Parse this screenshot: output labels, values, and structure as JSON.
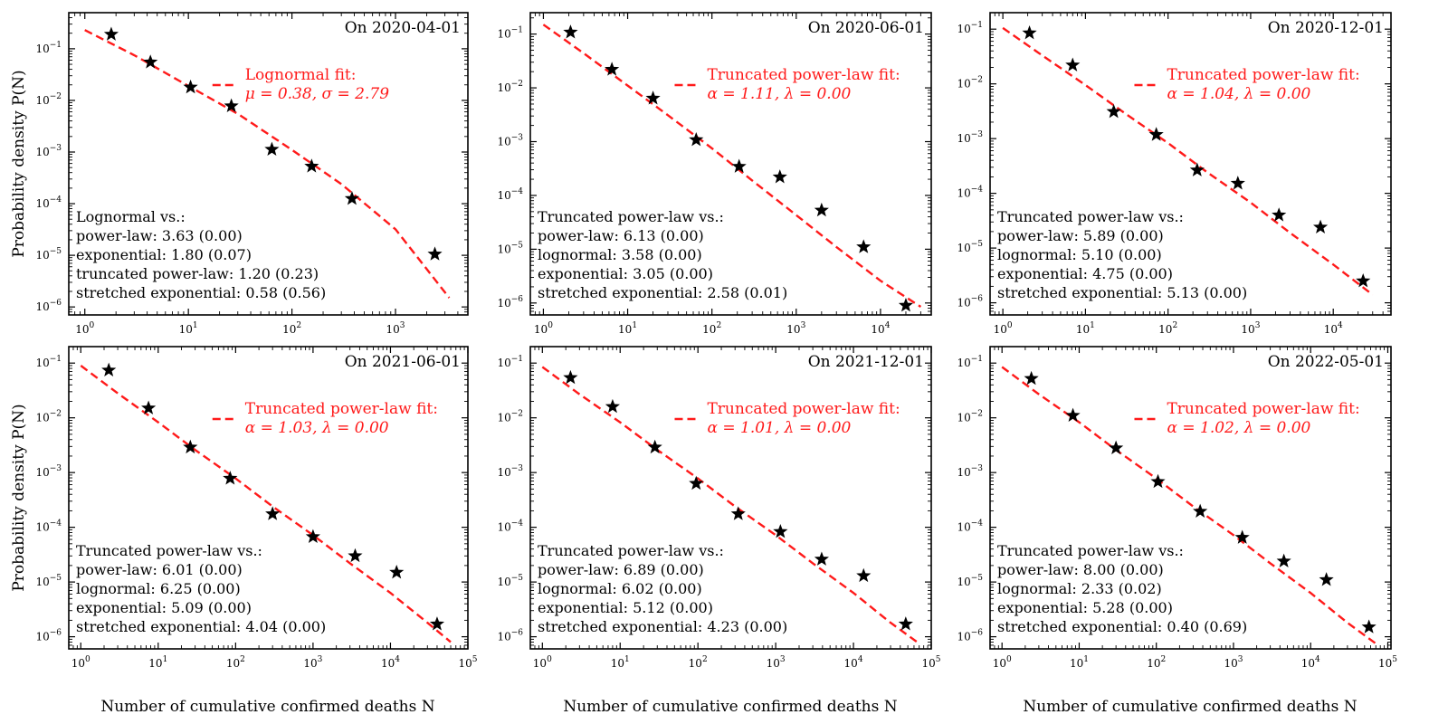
{
  "figure": {
    "ylabel": "Probability density P(N)",
    "xlabel": "Number of cumulative confirmed deaths N",
    "fit_color": "#ff1a1a",
    "marker_color": "#000000"
  },
  "chart_data": [
    {
      "type": "scatter",
      "title": "On 2020-04-01",
      "xlim": [
        0.7,
        5000
      ],
      "ylim": [
        7e-07,
        0.5
      ],
      "xticks": [
        1,
        10,
        100,
        1000
      ],
      "xtick_labels": [
        "10^0",
        "10^1",
        "10^2",
        "10^3"
      ],
      "yticks": [
        1e-06,
        1e-05,
        0.0001,
        0.001,
        0.01,
        0.1
      ],
      "ytick_labels": [
        "10^-6",
        "10^-5",
        "10^-4",
        "10^-3",
        "10^-2",
        "10^-1"
      ],
      "points": {
        "x": [
          1.8,
          4.3,
          10.5,
          26,
          64,
          155,
          380,
          2400
        ],
        "y": [
          0.19,
          0.055,
          0.018,
          0.0078,
          0.00112,
          0.00053,
          0.000125,
          1.05e-05
        ]
      },
      "fit": {
        "x": [
          1,
          3,
          10,
          30,
          100,
          300,
          1000,
          3300
        ],
        "y": [
          0.23,
          0.075,
          0.019,
          0.0055,
          0.0011,
          0.00024,
          3.2e-05,
          1.5e-06
        ]
      },
      "fit_label": [
        "Lognormal fit:",
        "μ = 0.38,  σ = 2.79"
      ],
      "comparison_title": "Lognormal vs.:",
      "comparisons": [
        "power-law: 3.63 (0.00)",
        "exponential: 1.80 (0.07)",
        "truncated power-law: 1.20 (0.23)",
        "stretched exponential: 0.58 (0.56)"
      ]
    },
    {
      "type": "scatter",
      "title": "On 2020-06-01",
      "xlim": [
        0.7,
        40000
      ],
      "ylim": [
        6e-07,
        0.25
      ],
      "xticks": [
        1,
        10,
        100,
        1000,
        10000
      ],
      "xtick_labels": [
        "10^0",
        "10^1",
        "10^2",
        "10^3",
        "10^4"
      ],
      "yticks": [
        1e-06,
        1e-05,
        0.0001,
        0.001,
        0.01,
        0.1
      ],
      "ytick_labels": [
        "10^-6",
        "10^-5",
        "10^-4",
        "10^-3",
        "10^-2",
        "10^-1"
      ],
      "points": {
        "x": [
          2.1,
          6.5,
          20,
          65,
          210,
          640,
          2000,
          6300,
          20000
        ],
        "y": [
          0.108,
          0.022,
          0.0064,
          0.00108,
          0.000345,
          0.00022,
          5.3e-05,
          1.1e-05,
          9e-07
        ]
      },
      "fit": {
        "x": [
          1,
          3,
          10,
          30,
          100,
          300,
          1000,
          3000,
          10000,
          30000
        ],
        "y": [
          0.15,
          0.044,
          0.011,
          0.0031,
          0.00075,
          0.00019,
          4.3e-05,
          1.1e-05,
          2.6e-06,
          8.5e-07
        ]
      },
      "fit_label": [
        "Truncated power-law fit:",
        "α = 1.11,  λ = 0.00"
      ],
      "comparison_title": "Truncated power-law vs.:",
      "comparisons": [
        "power-law: 6.13 (0.00)",
        "lognormal: 3.58 (0.00)",
        "exponential: 3.05 (0.00)",
        "stretched exponential: 2.58 (0.01)"
      ]
    },
    {
      "type": "scatter",
      "title": "On 2020-12-01",
      "xlim": [
        0.7,
        50000
      ],
      "ylim": [
        6e-07,
        0.2
      ],
      "xticks": [
        1,
        10,
        100,
        1000,
        10000
      ],
      "xtick_labels": [
        "10^0",
        "10^1",
        "10^2",
        "10^3",
        "10^4"
      ],
      "yticks": [
        1e-06,
        1e-05,
        0.0001,
        0.001,
        0.01,
        0.1
      ],
      "ytick_labels": [
        "10^-6",
        "10^-5",
        "10^-4",
        "10^-3",
        "10^-2",
        "10^-1"
      ],
      "points": {
        "x": [
          2.1,
          7,
          22,
          72,
          225,
          700,
          2200,
          7000,
          23000
        ],
        "y": [
          0.085,
          0.022,
          0.0031,
          0.00118,
          0.000265,
          0.000152,
          4e-05,
          2.4e-05,
          2.5e-06
        ]
      },
      "fit": {
        "x": [
          1,
          3,
          10,
          30,
          100,
          300,
          1000,
          3000,
          10000,
          30000
        ],
        "y": [
          0.105,
          0.033,
          0.0095,
          0.0029,
          0.00083,
          0.00024,
          6.8e-05,
          1.9e-05,
          5e-06,
          1.4e-06
        ]
      },
      "fit_label": [
        "Truncated power-law fit:",
        "α = 1.04,  λ = 0.00"
      ],
      "comparison_title": "Truncated power-law vs.:",
      "comparisons": [
        "power-law: 5.89 (0.00)",
        "lognormal: 5.10 (0.00)",
        "exponential: 4.75 (0.00)",
        "stretched exponential: 5.13 (0.00)"
      ]
    },
    {
      "type": "scatter",
      "title": "On 2021-06-01",
      "xlim": [
        0.7,
        100000
      ],
      "ylim": [
        6e-07,
        0.2
      ],
      "xticks": [
        1,
        10,
        100,
        1000,
        10000,
        100000
      ],
      "xtick_labels": [
        "10^0",
        "10^1",
        "10^2",
        "10^3",
        "10^4",
        "10^5"
      ],
      "yticks": [
        1e-06,
        1e-05,
        0.0001,
        0.001,
        0.01,
        0.1
      ],
      "ytick_labels": [
        "10^-6",
        "10^-5",
        "10^-4",
        "10^-3",
        "10^-2",
        "10^-1"
      ],
      "points": {
        "x": [
          2.3,
          7.5,
          26,
          85,
          300,
          1000,
          3500,
          12000,
          40000
        ],
        "y": [
          0.074,
          0.015,
          0.0029,
          0.00078,
          0.000175,
          6.7e-05,
          3e-05,
          1.5e-05,
          1.7e-06
        ]
      },
      "fit": {
        "x": [
          1,
          3,
          10,
          30,
          100,
          300,
          1000,
          3000,
          10000,
          30000,
          60000
        ],
        "y": [
          0.09,
          0.028,
          0.0083,
          0.0026,
          0.00078,
          0.00024,
          7.2e-05,
          2.2e-05,
          6.3e-06,
          1.8e-06,
          8e-07
        ]
      },
      "fit_label": [
        "Truncated power-law fit:",
        "α = 1.03,  λ = 0.00"
      ],
      "comparison_title": "Truncated power-law vs.:",
      "comparisons": [
        "power-law: 6.01 (0.00)",
        "lognormal: 6.25 (0.00)",
        "exponential: 5.09 (0.00)",
        "stretched exponential: 4.04 (0.00)"
      ]
    },
    {
      "type": "scatter",
      "title": "On 2021-12-01",
      "xlim": [
        0.7,
        100000
      ],
      "ylim": [
        6e-07,
        0.2
      ],
      "xticks": [
        1,
        10,
        100,
        1000,
        10000,
        100000
      ],
      "xtick_labels": [
        "10^0",
        "10^1",
        "10^2",
        "10^3",
        "10^4",
        "10^5"
      ],
      "yticks": [
        1e-06,
        1e-05,
        0.0001,
        0.001,
        0.01,
        0.1
      ],
      "ytick_labels": [
        "10^-6",
        "10^-5",
        "10^-4",
        "10^-3",
        "10^-2",
        "10^-1"
      ],
      "points": {
        "x": [
          2.3,
          8,
          28,
          95,
          330,
          1150,
          3900,
          13500,
          47000
        ],
        "y": [
          0.054,
          0.016,
          0.0029,
          0.00063,
          0.000175,
          8.3e-05,
          2.6e-05,
          1.3e-05,
          1.7e-06
        ]
      },
      "fit": {
        "x": [
          1,
          3,
          10,
          30,
          100,
          300,
          1000,
          3000,
          10000,
          30000,
          70000
        ],
        "y": [
          0.085,
          0.027,
          0.0083,
          0.0026,
          0.00078,
          0.00024,
          7.2e-05,
          2.2e-05,
          6.3e-06,
          1.8e-06,
          7.5e-07
        ]
      },
      "fit_label": [
        "Truncated power-law fit:",
        "α = 1.01,  λ = 0.00"
      ],
      "comparison_title": "Truncated power-law vs.:",
      "comparisons": [
        "power-law: 6.89 (0.00)",
        "lognormal: 6.02 (0.00)",
        "exponential: 5.12 (0.00)",
        "stretched exponential: 4.23 (0.00)"
      ]
    },
    {
      "type": "scatter",
      "title": "On 2022-05-01",
      "xlim": [
        0.7,
        110000
      ],
      "ylim": [
        6e-07,
        0.2
      ],
      "xticks": [
        1,
        10,
        100,
        1000,
        10000,
        100000
      ],
      "xtick_labels": [
        "10^0",
        "10^1",
        "10^2",
        "10^3",
        "10^4",
        "10^5"
      ],
      "yticks": [
        1e-06,
        1e-05,
        0.0001,
        0.001,
        0.01,
        0.1
      ],
      "ytick_labels": [
        "10^-6",
        "10^-5",
        "10^-4",
        "10^-3",
        "10^-2",
        "10^-1"
      ],
      "points": {
        "x": [
          2.4,
          8.3,
          30,
          105,
          370,
          1300,
          4500,
          16000,
          57000
        ],
        "y": [
          0.052,
          0.011,
          0.0028,
          0.00068,
          0.000195,
          6.5e-05,
          2.4e-05,
          1.1e-05,
          1.5e-06
        ]
      },
      "fit": {
        "x": [
          1,
          3,
          10,
          30,
          100,
          300,
          1000,
          3000,
          10000,
          30000,
          75000
        ],
        "y": [
          0.085,
          0.027,
          0.0083,
          0.0026,
          0.00078,
          0.00024,
          7.2e-05,
          2.2e-05,
          6.3e-06,
          1.8e-06,
          7e-07
        ]
      },
      "fit_label": [
        "Truncated power-law fit:",
        "α = 1.02,  λ = 0.00"
      ],
      "comparison_title": "Truncated power-law vs.:",
      "comparisons": [
        "power-law: 8.00 (0.00)",
        "lognormal: 2.33 (0.02)",
        "exponential: 5.28 (0.00)",
        "stretched exponential: 0.40 (0.69)"
      ]
    }
  ]
}
